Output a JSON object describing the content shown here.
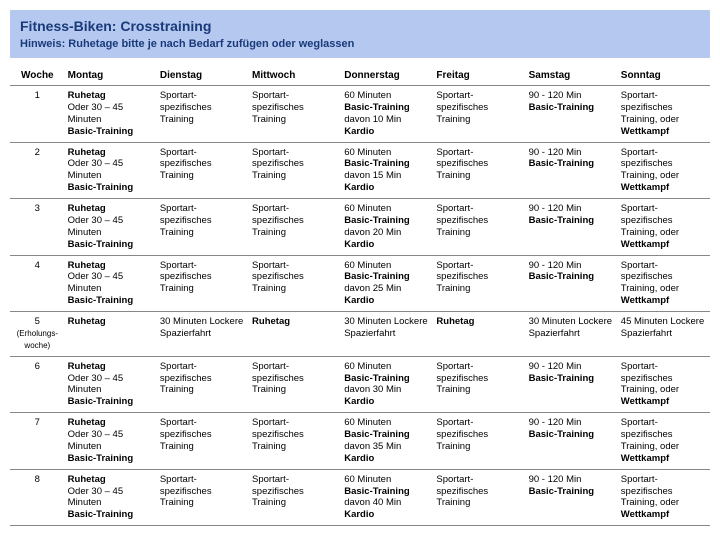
{
  "header": {
    "title": "Fitness-Biken: Crosstraining",
    "hint": "Hinweis: Ruhetage bitte je nach Bedarf zufügen oder weglassen"
  },
  "columns": [
    "Woche",
    "Montag",
    "Dienstag",
    "Mittwoch",
    "Donnerstag",
    "Freitag",
    "Samstag",
    "Sonntag"
  ],
  "cells": {
    "ruhe": "Ruhetag",
    "oder30": "Oder 30 – 45 Minuten",
    "basic": "Basic-Training",
    "sport": "Sportart-spezifisches Training",
    "sportOder": "Sportart-spezifisches Training, oder",
    "wettkampf": "Wettkampf",
    "min60": "60 Minuten",
    "davon10": "davon 10 Min",
    "davon15": "davon 15 Min",
    "davon20": "davon 20 Min",
    "davon25": "davon 25 Min",
    "davon30": "davon 30 Min",
    "davon35": "davon 35 Min",
    "davon40": "davon 40 Min",
    "kardio": "Kardio",
    "min90": "90 - 120 Min",
    "lockere30": "30 Minuten Lockere Spazierfahrt",
    "lockere45": "45 Minuten Lockere Spazierfahrt",
    "w1": "1",
    "w2": "2",
    "w3": "3",
    "w4": "4",
    "w5": "5",
    "w5sub": "(Erholungs-woche)",
    "w6": "6",
    "w7": "7",
    "w8": "8"
  }
}
